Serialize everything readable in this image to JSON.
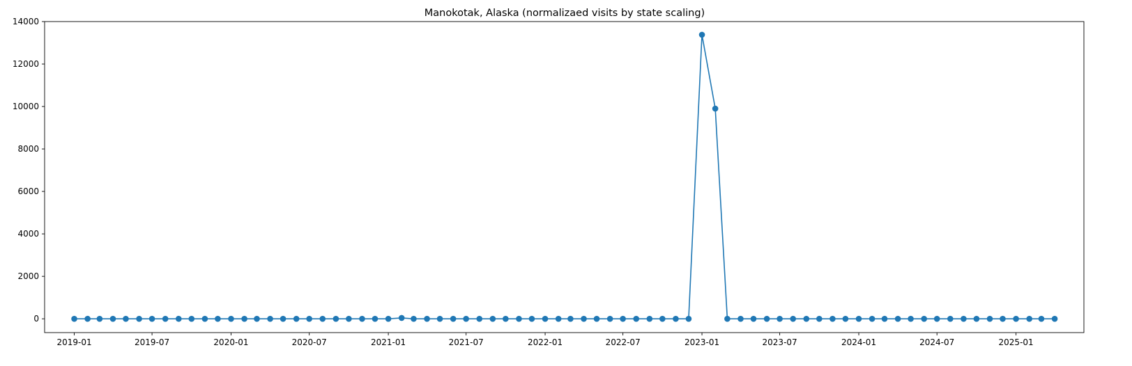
{
  "chart_data": {
    "type": "line",
    "title": "Manokotak, Alaska (normalizaed visits by state scaling)",
    "xlabel": "",
    "ylabel": "",
    "x_start": "2019-01",
    "x": [
      "2019-01",
      "2019-02",
      "2019-03",
      "2019-04",
      "2019-05",
      "2019-06",
      "2019-07",
      "2019-08",
      "2019-09",
      "2019-10",
      "2019-11",
      "2019-12",
      "2020-01",
      "2020-02",
      "2020-03",
      "2020-04",
      "2020-05",
      "2020-06",
      "2020-07",
      "2020-08",
      "2020-09",
      "2020-10",
      "2020-11",
      "2020-12",
      "2021-01",
      "2021-02",
      "2021-03",
      "2021-04",
      "2021-05",
      "2021-06",
      "2021-07",
      "2021-08",
      "2021-09",
      "2021-10",
      "2021-11",
      "2021-12",
      "2022-01",
      "2022-02",
      "2022-03",
      "2022-04",
      "2022-05",
      "2022-06",
      "2022-07",
      "2022-08",
      "2022-09",
      "2022-10",
      "2022-11",
      "2022-12",
      "2023-01",
      "2023-02",
      "2023-03",
      "2023-04",
      "2023-05",
      "2023-06",
      "2023-07",
      "2023-08",
      "2023-09",
      "2023-10",
      "2023-11",
      "2023-12",
      "2024-01",
      "2024-02",
      "2024-03",
      "2024-04",
      "2024-05",
      "2024-06",
      "2024-07",
      "2024-08",
      "2024-09",
      "2024-10",
      "2024-11",
      "2024-12",
      "2025-01",
      "2025-02",
      "2025-03",
      "2025-04"
    ],
    "series": [
      {
        "values": [
          0,
          0,
          0,
          0,
          0,
          0,
          0,
          0,
          0,
          0,
          0,
          0,
          0,
          0,
          0,
          0,
          0,
          0,
          0,
          0,
          0,
          0,
          0,
          0,
          0,
          40,
          0,
          0,
          0,
          0,
          0,
          0,
          0,
          0,
          0,
          0,
          0,
          0,
          0,
          0,
          0,
          0,
          0,
          0,
          0,
          0,
          0,
          0,
          13380,
          9900,
          0,
          0,
          0,
          0,
          0,
          0,
          0,
          0,
          0,
          0,
          0,
          0,
          0,
          0,
          0,
          0,
          0,
          0,
          0,
          0,
          0,
          0,
          0,
          0,
          0,
          0
        ]
      }
    ],
    "x_tick_labels": [
      "2019-01",
      "2019-07",
      "2020-01",
      "2020-07",
      "2021-01",
      "2021-07",
      "2022-01",
      "2022-07",
      "2023-01",
      "2023-07",
      "2024-01",
      "2024-07",
      "2025-01"
    ],
    "y_ticks": [
      0,
      2000,
      4000,
      6000,
      8000,
      10000,
      12000,
      14000
    ],
    "ylim": [
      -650,
      14000
    ],
    "xlim": [
      "2018-10-24",
      "2025-06-08"
    ],
    "grid": false,
    "legend": "none",
    "color": "#1f77b4"
  }
}
